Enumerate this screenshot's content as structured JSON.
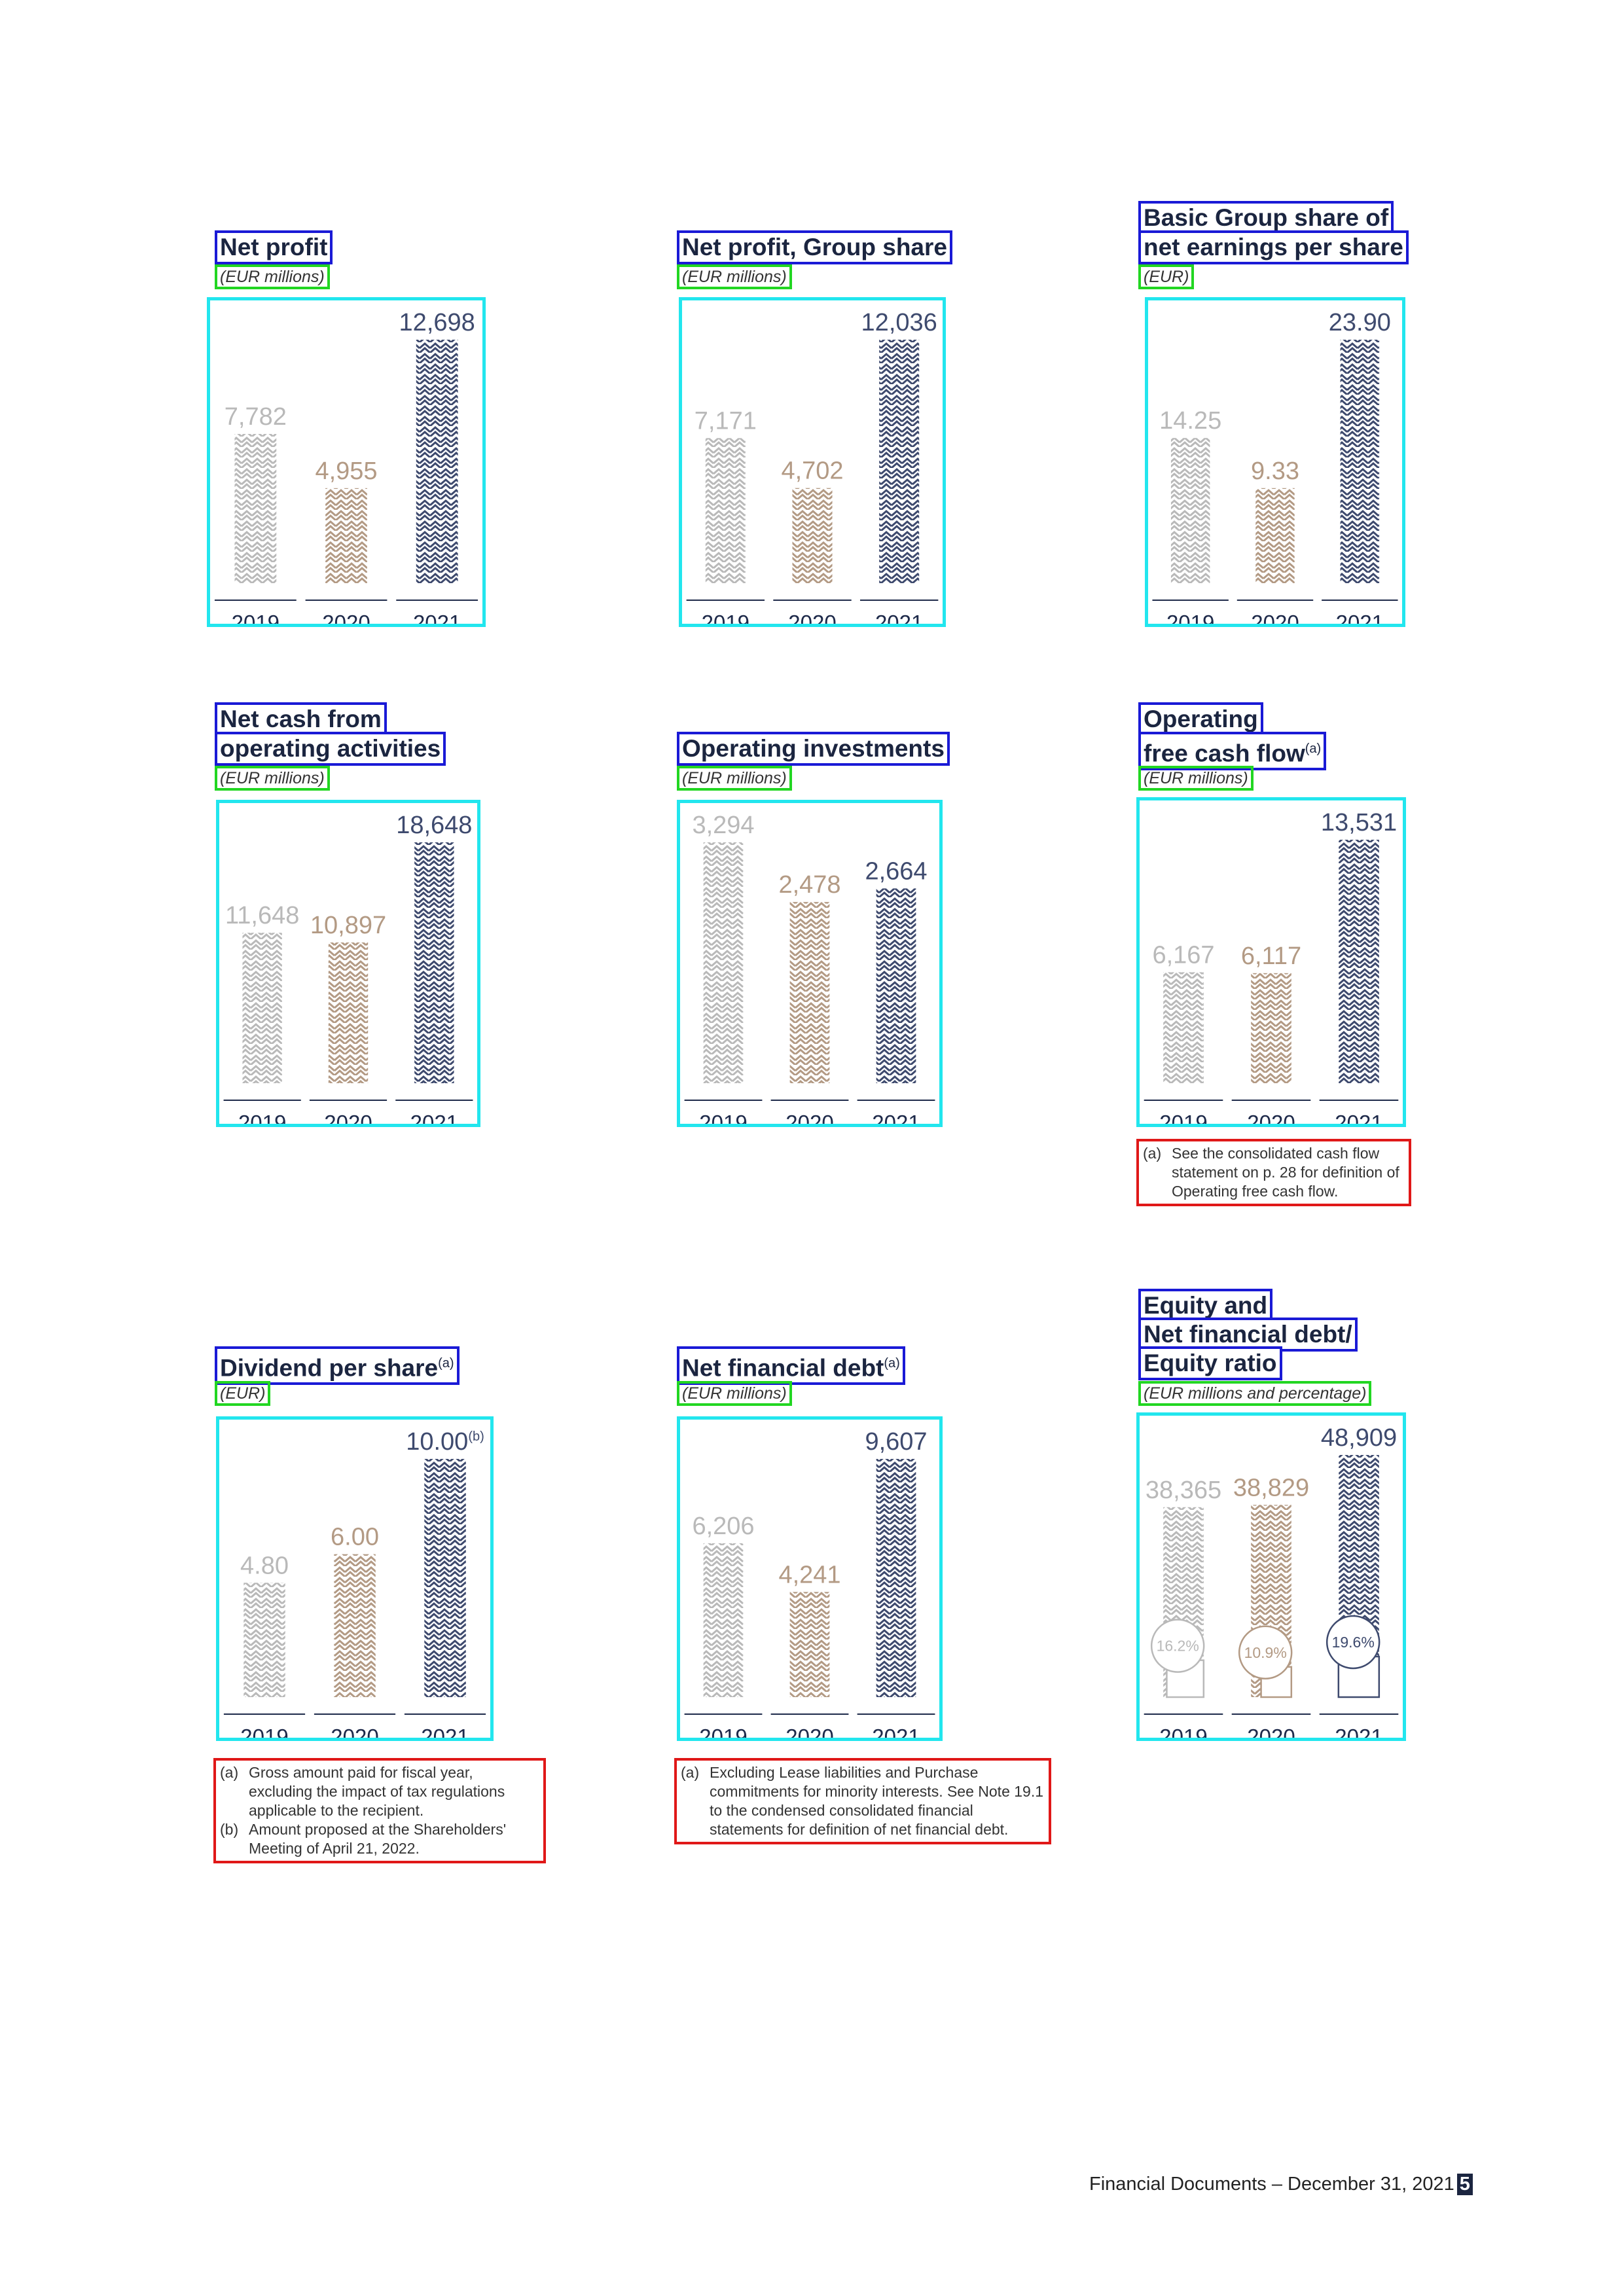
{
  "palette": {
    "y2019": "#b9b9b9",
    "y2020": "#b39a84",
    "y2021": "#3e4a6e"
  },
  "charts": [
    {
      "id": "net-profit",
      "title": "Net profit",
      "unit": "(EUR millions)",
      "chart_data": {
        "type": "bar",
        "categories": [
          "2019",
          "2020",
          "2021"
        ],
        "values": [
          7782,
          4955,
          12698
        ],
        "labels": [
          "7,782",
          "4,955",
          "12,698"
        ],
        "ylim": [
          0,
          12698
        ]
      }
    },
    {
      "id": "net-profit-group-share",
      "title": "Net profit, Group share",
      "unit": "(EUR millions)",
      "chart_data": {
        "type": "bar",
        "categories": [
          "2019",
          "2020",
          "2021"
        ],
        "values": [
          7171,
          4702,
          12036
        ],
        "labels": [
          "7,171",
          "4,702",
          "12,036"
        ],
        "ylim": [
          0,
          12036
        ]
      }
    },
    {
      "id": "eps",
      "title": "Basic Group share of net earnings per share",
      "unit": "(EUR)",
      "chart_data": {
        "type": "bar",
        "categories": [
          "2019",
          "2020",
          "2021"
        ],
        "values": [
          14.25,
          9.33,
          23.9
        ],
        "labels": [
          "14.25",
          "9.33",
          "23.90"
        ],
        "ylim": [
          0,
          23.9
        ]
      }
    },
    {
      "id": "cash-from-operating",
      "title": "Net cash from operating activities",
      "unit": "(EUR millions)",
      "chart_data": {
        "type": "bar",
        "categories": [
          "2019",
          "2020",
          "2021"
        ],
        "values": [
          11648,
          10897,
          18648
        ],
        "labels": [
          "11,648",
          "10,897",
          "18,648"
        ],
        "ylim": [
          0,
          18648
        ]
      }
    },
    {
      "id": "operating-investments",
      "title": "Operating investments",
      "unit": "(EUR millions)",
      "chart_data": {
        "type": "bar",
        "categories": [
          "2019",
          "2020",
          "2021"
        ],
        "values": [
          3294,
          2478,
          2664
        ],
        "labels": [
          "3,294",
          "2,478",
          "2,664"
        ],
        "ylim": [
          0,
          3294
        ]
      }
    },
    {
      "id": "operating-fcf",
      "title": "Operating free cash flow",
      "title_note": "(a)",
      "unit": "(EUR millions)",
      "chart_data": {
        "type": "bar",
        "categories": [
          "2019",
          "2020",
          "2021"
        ],
        "values": [
          6167,
          6117,
          13531
        ],
        "labels": [
          "6,167",
          "6,117",
          "13,531"
        ],
        "ylim": [
          0,
          13531
        ]
      },
      "notes": [
        {
          "label": "(a)",
          "text": "See the consolidated cash flow statement on p. 28 for definition of Operating free cash flow."
        }
      ]
    },
    {
      "id": "dividend",
      "title": "Dividend per share",
      "title_note": "(a)",
      "unit": "(EUR)",
      "chart_data": {
        "type": "bar",
        "categories": [
          "2019",
          "2020",
          "2021"
        ],
        "values": [
          4.8,
          6.0,
          10.0
        ],
        "labels": [
          "4.80",
          "6.00",
          "10.00"
        ],
        "label_notes": [
          "",
          "",
          "(b)"
        ],
        "ylim": [
          0,
          10.0
        ]
      },
      "notes": [
        {
          "label": "(a)",
          "text": "Gross amount paid for fiscal year, excluding the impact of tax regulations applicable to the recipient."
        },
        {
          "label": "(b)",
          "text": "Amount proposed at the Shareholders' Meeting of April 21, 2022."
        }
      ]
    },
    {
      "id": "net-financial-debt",
      "title": "Net financial debt",
      "title_note": "(a)",
      "unit": "(EUR millions)",
      "chart_data": {
        "type": "bar",
        "categories": [
          "2019",
          "2020",
          "2021"
        ],
        "values": [
          6206,
          4241,
          9607
        ],
        "labels": [
          "6,206",
          "4,241",
          "9,607"
        ],
        "ylim": [
          0,
          9607
        ]
      },
      "notes": [
        {
          "label": "(a)",
          "text": "Excluding Lease liabilities and Purchase commitments for minority interests. See Note 19.1 to the condensed consolidated financial statements for definition of net financial debt."
        }
      ]
    },
    {
      "id": "equity-ratio",
      "title": "Equity and Net financial debt/ Equity ratio",
      "unit": "(EUR millions and percentage)",
      "chart_data": {
        "type": "bar",
        "categories": [
          "2019",
          "2020",
          "2021"
        ],
        "values": [
          38365,
          38829,
          48909
        ],
        "labels": [
          "38,365",
          "38,829",
          "48,909"
        ],
        "ylim": [
          0,
          48909
        ],
        "ratio": [
          16.2,
          10.9,
          19.6
        ],
        "ratio_labels": [
          "16.2%",
          "10.9%",
          "19.6%"
        ]
      }
    }
  ],
  "footer": {
    "text": "Financial Documents – December 31, 2021",
    "page": "5"
  }
}
